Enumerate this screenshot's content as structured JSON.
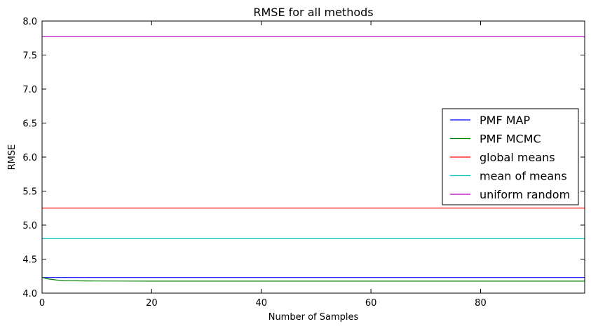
{
  "chart_data": {
    "type": "line",
    "title": "RMSE for all methods",
    "xlabel": "Number of Samples",
    "ylabel": "RMSE",
    "xlim": [
      0,
      99
    ],
    "ylim": [
      4.0,
      8.0
    ],
    "x_ticks": [
      0,
      20,
      40,
      60,
      80
    ],
    "x_tick_labels": [
      "0",
      "20",
      "40",
      "60",
      "80"
    ],
    "y_ticks": [
      4.0,
      4.5,
      5.0,
      5.5,
      6.0,
      6.5,
      7.0,
      7.5,
      8.0
    ],
    "y_tick_labels": [
      "4.0",
      "4.5",
      "5.0",
      "5.5",
      "6.0",
      "6.5",
      "7.0",
      "7.5",
      "8.0"
    ],
    "grid": false,
    "legend_position": "center-right",
    "series": [
      {
        "name": "PMF MAP",
        "color": "#0000ff",
        "x": [
          0,
          99
        ],
        "y": [
          4.23,
          4.23
        ]
      },
      {
        "name": "PMF MCMC",
        "color": "#008000",
        "x": [
          0,
          1,
          2,
          3,
          4,
          5,
          7,
          10,
          15,
          20,
          30,
          40,
          60,
          80,
          99
        ],
        "y": [
          4.23,
          4.21,
          4.2,
          4.19,
          4.185,
          4.182,
          4.18,
          4.178,
          4.177,
          4.176,
          4.176,
          4.176,
          4.176,
          4.176,
          4.176
        ]
      },
      {
        "name": "global means",
        "color": "#ff0000",
        "x": [
          0,
          99
        ],
        "y": [
          5.25,
          5.25
        ]
      },
      {
        "name": "mean of means",
        "color": "#00bfbf",
        "x": [
          0,
          99
        ],
        "y": [
          4.8,
          4.8
        ]
      },
      {
        "name": "uniform random",
        "color": "#bf00bf",
        "x": [
          0,
          99
        ],
        "y": [
          7.77,
          7.77
        ]
      }
    ]
  }
}
